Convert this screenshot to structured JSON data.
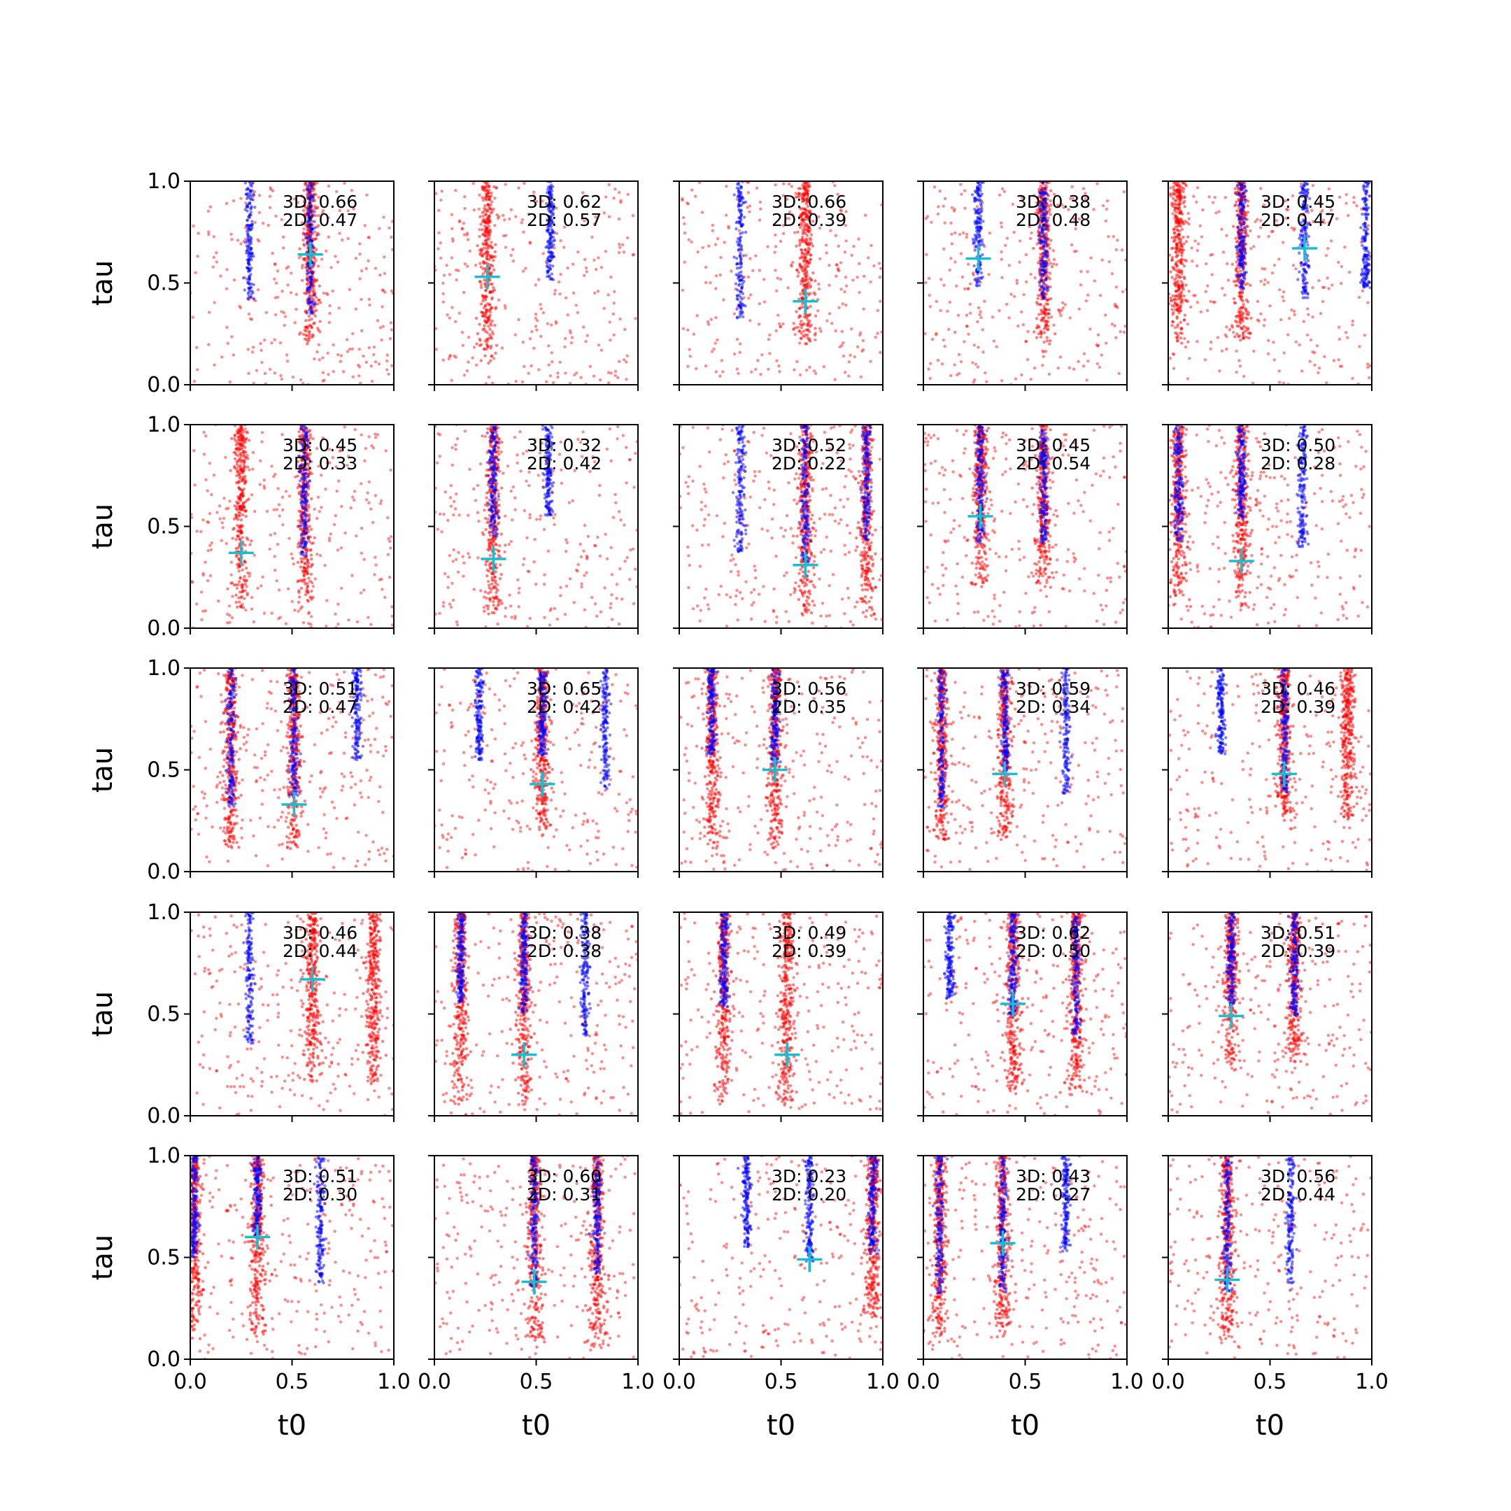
{
  "chart_data": {
    "type": "scatter",
    "layout": {
      "rows": 5,
      "cols": 5
    },
    "xlabel": "t0",
    "ylabel": "tau",
    "xlim": [
      0,
      1
    ],
    "ylim": [
      0,
      1
    ],
    "xticks": [
      "0.0",
      "0.5",
      "1.0"
    ],
    "yticks": [
      "0.0",
      "0.5",
      "1.0"
    ],
    "grid": false,
    "colors": {
      "red_points": "#ff0000",
      "blue_points": "#0000ff",
      "marker": "#17becf",
      "axes": "#000000"
    },
    "panels": [
      {
        "label_3d": "3D: 0.66",
        "label_2d": "2D: 0.47",
        "marker": [
          0.59,
          0.64
        ],
        "blue_x": [
          0.29,
          0.59
        ],
        "red_x": [
          0.59
        ],
        "red_band_bottom": 0.2
      },
      {
        "label_3d": "3D: 0.62",
        "label_2d": "2D: 0.57",
        "marker": [
          0.26,
          0.53
        ],
        "blue_x": [
          0.57
        ],
        "red_x": [
          0.26
        ],
        "red_band_bottom": 0.1
      },
      {
        "label_3d": "3D: 0.66",
        "label_2d": "2D: 0.39",
        "marker": [
          0.62,
          0.41
        ],
        "blue_x": [
          0.3
        ],
        "red_x": [
          0.62
        ],
        "red_band_bottom": 0.2
      },
      {
        "label_3d": "3D: 0.38",
        "label_2d": "2D: 0.48",
        "marker": [
          0.27,
          0.62
        ],
        "blue_x": [
          0.27,
          0.59
        ],
        "red_x": [
          0.59
        ],
        "red_band_bottom": 0.2
      },
      {
        "label_3d": "3D: 0.45",
        "label_2d": "2D: 0.47",
        "marker": [
          0.67,
          0.67
        ],
        "blue_x": [
          0.36,
          0.67,
          0.97
        ],
        "red_x": [
          0.05,
          0.36
        ],
        "red_band_bottom": 0.2
      },
      {
        "label_3d": "3D: 0.45",
        "label_2d": "2D: 0.33",
        "marker": [
          0.25,
          0.37
        ],
        "blue_x": [
          0.56
        ],
        "red_x": [
          0.25,
          0.56
        ],
        "red_band_bottom": 0.1
      },
      {
        "label_3d": "3D: 0.32",
        "label_2d": "2D: 0.42",
        "marker": [
          0.29,
          0.34
        ],
        "blue_x": [
          0.29,
          0.56
        ],
        "red_x": [
          0.29
        ],
        "red_band_bottom": 0.05
      },
      {
        "label_3d": "3D: 0.52",
        "label_2d": "2D: 0.22",
        "marker": [
          0.62,
          0.31
        ],
        "blue_x": [
          0.3,
          0.62,
          0.92
        ],
        "red_x": [
          0.62,
          0.92
        ],
        "red_band_bottom": 0.05
      },
      {
        "label_3d": "3D: 0.45",
        "label_2d": "2D: 0.54",
        "marker": [
          0.28,
          0.55
        ],
        "blue_x": [
          0.28,
          0.59
        ],
        "red_x": [
          0.28,
          0.59
        ],
        "red_band_bottom": 0.2
      },
      {
        "label_3d": "3D: 0.50",
        "label_2d": "2D: 0.28",
        "marker": [
          0.36,
          0.33
        ],
        "blue_x": [
          0.05,
          0.36,
          0.66
        ],
        "red_x": [
          0.05,
          0.36
        ],
        "red_band_bottom": 0.1
      },
      {
        "label_3d": "3D: 0.51",
        "label_2d": "2D: 0.47",
        "marker": [
          0.51,
          0.33
        ],
        "blue_x": [
          0.2,
          0.51,
          0.82
        ],
        "red_x": [
          0.2,
          0.51
        ],
        "red_band_bottom": 0.1
      },
      {
        "label_3d": "3D: 0.65",
        "label_2d": "2D: 0.42",
        "marker": [
          0.53,
          0.43
        ],
        "blue_x": [
          0.22,
          0.53,
          0.84
        ],
        "red_x": [
          0.53
        ],
        "red_band_bottom": 0.2
      },
      {
        "label_3d": "3D: 0.56",
        "label_2d": "2D: 0.35",
        "marker": [
          0.47,
          0.5
        ],
        "blue_x": [
          0.16,
          0.47
        ],
        "red_x": [
          0.16,
          0.47
        ],
        "red_band_bottom": 0.1
      },
      {
        "label_3d": "3D: 0.59",
        "label_2d": "2D: 0.34",
        "marker": [
          0.4,
          0.48
        ],
        "blue_x": [
          0.09,
          0.4,
          0.7
        ],
        "red_x": [
          0.09,
          0.4
        ],
        "red_band_bottom": 0.15
      },
      {
        "label_3d": "3D: 0.46",
        "label_2d": "2D: 0.39",
        "marker": [
          0.57,
          0.48
        ],
        "blue_x": [
          0.26,
          0.57
        ],
        "red_x": [
          0.57,
          0.88
        ],
        "red_band_bottom": 0.25
      },
      {
        "label_3d": "3D: 0.46",
        "label_2d": "2D: 0.44",
        "marker": [
          0.6,
          0.67
        ],
        "blue_x": [
          0.29
        ],
        "red_x": [
          0.6,
          0.9
        ],
        "red_band_bottom": 0.15
      },
      {
        "label_3d": "3D: 0.38",
        "label_2d": "2D: 0.38",
        "marker": [
          0.44,
          0.3
        ],
        "blue_x": [
          0.13,
          0.44,
          0.74
        ],
        "red_x": [
          0.13,
          0.44
        ],
        "red_band_bottom": 0.05
      },
      {
        "label_3d": "3D: 0.49",
        "label_2d": "2D: 0.39",
        "marker": [
          0.53,
          0.3
        ],
        "blue_x": [
          0.22
        ],
        "red_x": [
          0.22,
          0.53
        ],
        "red_band_bottom": 0.05
      },
      {
        "label_3d": "3D: 0.62",
        "label_2d": "2D: 0.50",
        "marker": [
          0.44,
          0.55
        ],
        "blue_x": [
          0.13,
          0.44,
          0.75
        ],
        "red_x": [
          0.44,
          0.75
        ],
        "red_band_bottom": 0.1
      },
      {
        "label_3d": "3D: 0.51",
        "label_2d": "2D: 0.39",
        "marker": [
          0.31,
          0.49
        ],
        "blue_x": [
          0.31,
          0.62
        ],
        "red_x": [
          0.31,
          0.62
        ],
        "red_band_bottom": 0.25
      },
      {
        "label_3d": "3D: 0.51",
        "label_2d": "2D: 0.30",
        "marker": [
          0.33,
          0.6
        ],
        "blue_x": [
          0.02,
          0.33,
          0.64
        ],
        "red_x": [
          0.02,
          0.33
        ],
        "red_band_bottom": 0.1
      },
      {
        "label_3d": "3D: 0.60",
        "label_2d": "2D: 0.31",
        "marker": [
          0.49,
          0.38
        ],
        "blue_x": [
          0.49,
          0.8
        ],
        "red_x": [
          0.49,
          0.8
        ],
        "red_band_bottom": 0.05
      },
      {
        "label_3d": "3D: 0.23",
        "label_2d": "2D: 0.20",
        "marker": [
          0.64,
          0.49
        ],
        "blue_x": [
          0.33,
          0.64,
          0.95
        ],
        "red_x": [
          0.95
        ],
        "red_band_bottom": 0.2
      },
      {
        "label_3d": "3D: 0.43",
        "label_2d": "2D: 0.27",
        "marker": [
          0.39,
          0.57
        ],
        "blue_x": [
          0.08,
          0.39,
          0.7
        ],
        "red_x": [
          0.08,
          0.39
        ],
        "red_band_bottom": 0.1
      },
      {
        "label_3d": "3D: 0.56",
        "label_2d": "2D: 0.44",
        "marker": [
          0.29,
          0.39
        ],
        "blue_x": [
          0.29,
          0.6
        ],
        "red_x": [
          0.29
        ],
        "red_band_bottom": 0.1
      }
    ]
  }
}
